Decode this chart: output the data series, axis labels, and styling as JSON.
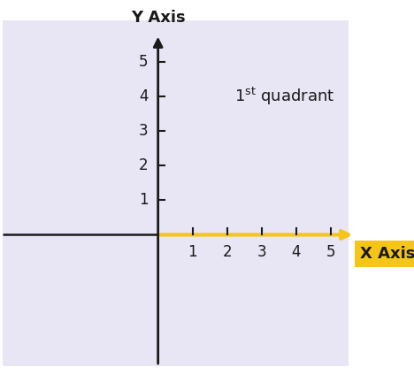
{
  "outer_bg": "#ffffff",
  "lavender": "#e8e5f5",
  "x_axis_color": "#f5c518",
  "y_axis_color": "#1a1a1a",
  "tick_color": "#1a1a1a",
  "label_color": "#1a1a1a",
  "x_ticks": [
    1,
    2,
    3,
    4,
    5
  ],
  "y_ticks": [
    1,
    2,
    3,
    4,
    5
  ],
  "x_axis_label": "X Axis",
  "y_axis_label": "Y Axis",
  "x_label_bg": "#f5c518",
  "x_range": [
    -4.5,
    6.2
  ],
  "y_range": [
    -3.8,
    6.2
  ],
  "figsize": [
    4.68,
    4.24
  ],
  "dpi": 100,
  "title_fontsize": 13,
  "tick_fontsize": 12,
  "quadrant_fontsize": 13,
  "line_width": 2.0,
  "x_axis_lw": 3.0,
  "neg_axis_lw": 1.8
}
